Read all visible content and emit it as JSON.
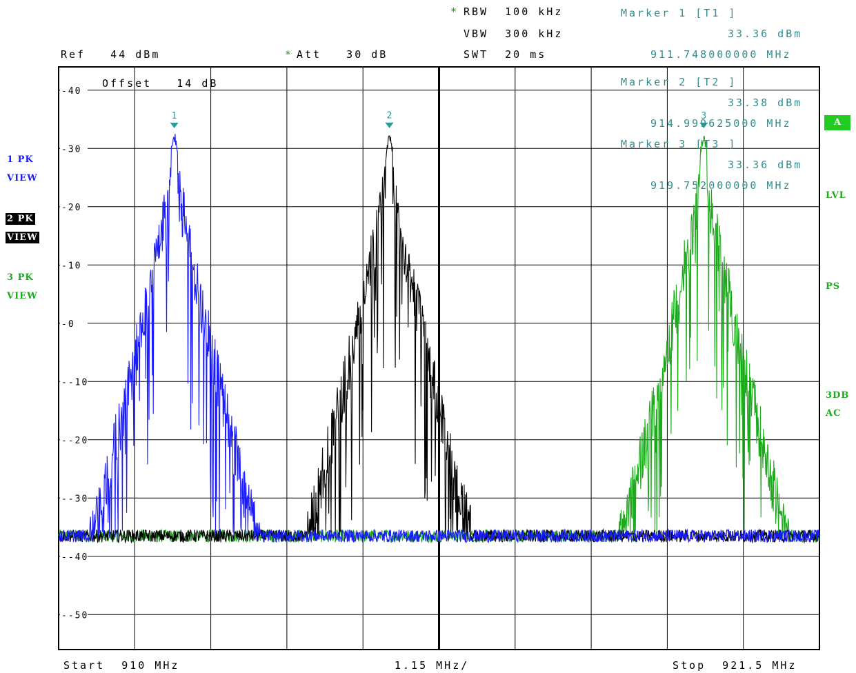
{
  "header": {
    "rbw_star": "*",
    "rbw": "RBW  100 kHz",
    "vbw": "VBW  300 kHz",
    "swt": "SWT  20 ms",
    "ref": "Ref   44 dBm",
    "att_star": "*",
    "att": "Att   30 dB",
    "offset": "Offset   14 dB"
  },
  "markers": [
    {
      "title": "Marker 1 [T1 ]",
      "level": "33.36 dBm",
      "freq": "911.748000000 MHz",
      "label": "1"
    },
    {
      "title": "Marker 2 [T2 ]",
      "level": "33.38 dBm",
      "freq": "914.999625000 MHz",
      "label": "2"
    },
    {
      "title": "Marker 3 [T3 ]",
      "level": "33.36 dBm",
      "freq": "919.752000000 MHz",
      "label": "3"
    }
  ],
  "left_labels": {
    "t1_pk": "1 PK",
    "t1_view": "VIEW",
    "t2_pk": "2 PK",
    "t2_view": "VIEW",
    "t3_pk": "3 PK",
    "t3_view": "VIEW"
  },
  "right_labels": {
    "a": "A",
    "lvl": "LVL",
    "ps": "PS",
    "db3": "3DB",
    "ac": "AC"
  },
  "footer": {
    "start": "Start  910 MHz",
    "div": "1.15 MHz/",
    "stop": "Stop  921.5 MHz"
  },
  "colors": {
    "trace1": "#1a1aff",
    "trace2": "#000000",
    "trace3": "#1aaa1a",
    "marker": "#2a9a9a",
    "badge": "#22cc22"
  },
  "chart_data": {
    "type": "line",
    "x_unit": "MHz",
    "y_unit": "dBm",
    "xlim": [
      910,
      921.5
    ],
    "ylim": [
      -56,
      44
    ],
    "yticks": [
      40,
      30,
      20,
      10,
      0,
      -10,
      -20,
      -30,
      -40,
      -50
    ],
    "ytick_labels": [
      "40",
      "30",
      "20",
      "10",
      "0",
      "-10",
      "-20",
      "-30",
      "-40",
      "-50"
    ],
    "noise_floor": -36.5,
    "grid": true,
    "series": [
      {
        "peak_freq": 911.748,
        "peak_level": 33.36,
        "floor": -36.5
      },
      {
        "peak_freq": 914.999625,
        "peak_level": 33.38,
        "floor": -36.5
      },
      {
        "peak_freq": 919.752,
        "peak_level": 33.36,
        "floor": -36.5
      }
    ]
  }
}
